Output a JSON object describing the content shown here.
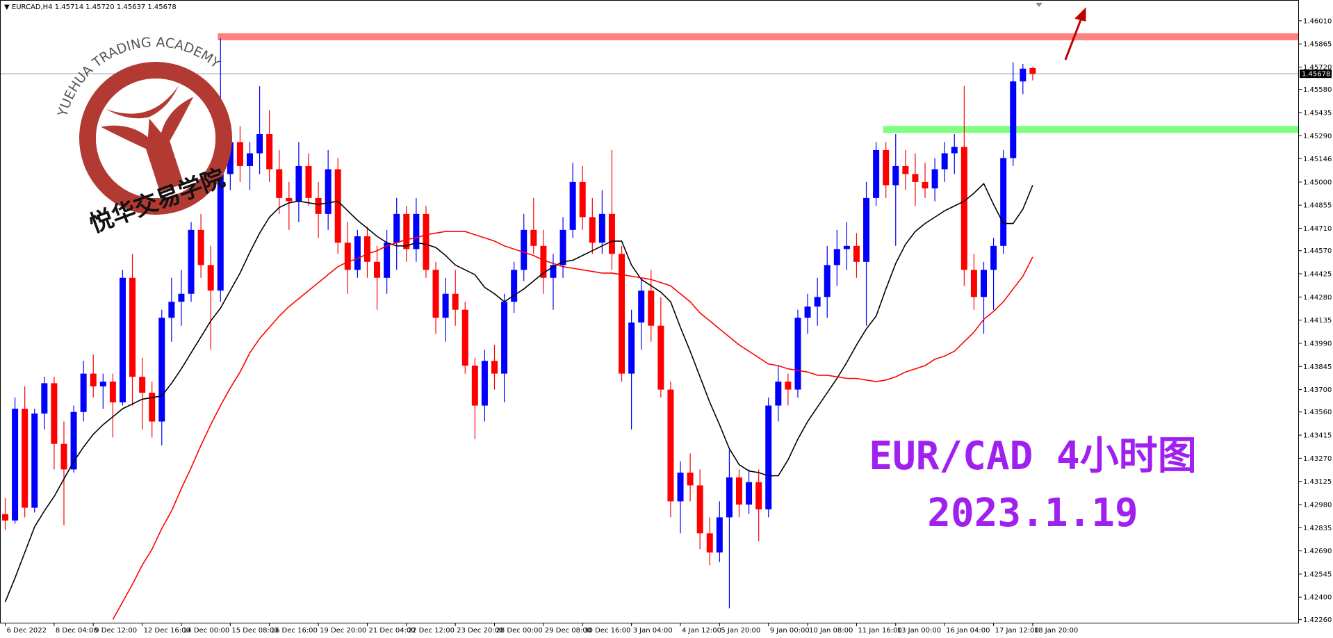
{
  "chart_data": {
    "type": "candlestick",
    "header": {
      "symbol": "EURCAD,H4",
      "prices": [
        "1.45714",
        "1.45720",
        "1.45637",
        "1.45678"
      ]
    },
    "categories": [
      "6 Dec 2022",
      null,
      null,
      null,
      null,
      "8 Dec 04:00",
      null,
      null,
      null,
      "9 Dec 12:00",
      null,
      null,
      null,
      null,
      "12 Dec 16:00",
      null,
      null,
      null,
      "14 Dec 00:00",
      null,
      null,
      null,
      null,
      "15 Dec 08:00",
      null,
      null,
      null,
      "16 Dec 16:00",
      null,
      null,
      null,
      null,
      "19 Dec 20:00",
      null,
      null,
      null,
      null,
      "21 Dec 04:00",
      null,
      null,
      null,
      "22 Dec 12:00",
      null,
      null,
      null,
      null,
      "23 Dec 20:00",
      null,
      null,
      null,
      "28 Dec 00:00",
      null,
      null,
      null,
      null,
      "29 Dec 08:00",
      null,
      null,
      null,
      "30 Dec 16:00",
      null,
      null,
      null,
      null,
      "3 Jan 04:00",
      null,
      null,
      null,
      null,
      "4 Jan 12:00",
      null,
      null,
      null,
      "5 Jan 20:00",
      null,
      null,
      null,
      null,
      "9 Jan 00:00",
      null,
      null,
      null,
      "10 Jan 08:00",
      null,
      null,
      null,
      null,
      "11 Jan 16:00",
      null,
      null,
      null,
      "13 Jan 00:00",
      null,
      null,
      null,
      null,
      "16 Jan 04:00",
      null,
      null,
      null,
      null,
      "17 Jan 12:00",
      null,
      null,
      null,
      "18 Jan 20:00"
    ],
    "ohlc": [
      [
        1.4292,
        1.4302,
        1.4282,
        1.4288
      ],
      [
        1.4288,
        1.4365,
        1.4286,
        1.4358
      ],
      [
        1.4358,
        1.4372,
        1.429,
        1.4296
      ],
      [
        1.4296,
        1.4358,
        1.4293,
        1.4355
      ],
      [
        1.4355,
        1.4378,
        1.4345,
        1.4374
      ],
      [
        1.4374,
        1.4378,
        1.432,
        1.4336
      ],
      [
        1.4336,
        1.435,
        1.4285,
        1.432
      ],
      [
        1.432,
        1.436,
        1.4318,
        1.4356
      ],
      [
        1.4356,
        1.4388,
        1.435,
        1.438
      ],
      [
        1.438,
        1.4392,
        1.4365,
        1.4372
      ],
      [
        1.4372,
        1.438,
        1.4358,
        1.4375
      ],
      [
        1.4375,
        1.438,
        1.434,
        1.4362
      ],
      [
        1.4362,
        1.4445,
        1.436,
        1.444
      ],
      [
        1.444,
        1.4455,
        1.436,
        1.4378
      ],
      [
        1.4378,
        1.439,
        1.4345,
        1.4368
      ],
      [
        1.4368,
        1.4375,
        1.434,
        1.435
      ],
      [
        1.435,
        1.442,
        1.4335,
        1.4415
      ],
      [
        1.4415,
        1.444,
        1.44,
        1.4425
      ],
      [
        1.4425,
        1.4445,
        1.441,
        1.443
      ],
      [
        1.443,
        1.4475,
        1.4425,
        1.447
      ],
      [
        1.447,
        1.448,
        1.444,
        1.4448
      ],
      [
        1.4448,
        1.446,
        1.4395,
        1.4432
      ],
      [
        1.4432,
        1.459,
        1.4425,
        1.4505
      ],
      [
        1.4505,
        1.453,
        1.4495,
        1.4525
      ],
      [
        1.4525,
        1.4535,
        1.45,
        1.451
      ],
      [
        1.451,
        1.4525,
        1.4495,
        1.4518
      ],
      [
        1.4518,
        1.456,
        1.4505,
        1.453
      ],
      [
        1.453,
        1.4545,
        1.45,
        1.4508
      ],
      [
        1.4508,
        1.452,
        1.448,
        1.449
      ],
      [
        1.449,
        1.45,
        1.447,
        1.4488
      ],
      [
        1.4488,
        1.4525,
        1.4475,
        1.451
      ],
      [
        1.451,
        1.4518,
        1.4485,
        1.449
      ],
      [
        1.449,
        1.45,
        1.4465,
        1.448
      ],
      [
        1.448,
        1.452,
        1.447,
        1.4508
      ],
      [
        1.4508,
        1.4515,
        1.4455,
        1.4462
      ],
      [
        1.4462,
        1.4475,
        1.443,
        1.4445
      ],
      [
        1.4445,
        1.447,
        1.444,
        1.4466
      ],
      [
        1.4466,
        1.4472,
        1.444,
        1.445
      ],
      [
        1.445,
        1.446,
        1.442,
        1.444
      ],
      [
        1.444,
        1.447,
        1.443,
        1.4462
      ],
      [
        1.4462,
        1.449,
        1.4445,
        1.448
      ],
      [
        1.448,
        1.4485,
        1.445,
        1.4458
      ],
      [
        1.4458,
        1.449,
        1.445,
        1.448
      ],
      [
        1.448,
        1.4485,
        1.444,
        1.4445
      ],
      [
        1.4445,
        1.445,
        1.4405,
        1.4415
      ],
      [
        1.4415,
        1.444,
        1.44,
        1.443
      ],
      [
        1.443,
        1.4445,
        1.441,
        1.442
      ],
      [
        1.442,
        1.4425,
        1.438,
        1.4385
      ],
      [
        1.4385,
        1.439,
        1.4339,
        1.436
      ],
      [
        1.436,
        1.4395,
        1.435,
        1.4388
      ],
      [
        1.4388,
        1.4398,
        1.437,
        1.438
      ],
      [
        1.438,
        1.443,
        1.4362,
        1.4425
      ],
      [
        1.4425,
        1.445,
        1.4418,
        1.4445
      ],
      [
        1.4445,
        1.448,
        1.4438,
        1.447
      ],
      [
        1.447,
        1.449,
        1.4455,
        1.446
      ],
      [
        1.446,
        1.447,
        1.443,
        1.444
      ],
      [
        1.444,
        1.4455,
        1.442,
        1.4448
      ],
      [
        1.4448,
        1.4478,
        1.444,
        1.447
      ],
      [
        1.447,
        1.4512,
        1.4465,
        1.45
      ],
      [
        1.45,
        1.451,
        1.447,
        1.4478
      ],
      [
        1.4478,
        1.449,
        1.4455,
        1.4462
      ],
      [
        1.4462,
        1.4495,
        1.4455,
        1.448
      ],
      [
        1.448,
        1.452,
        1.4445,
        1.4455
      ],
      [
        1.4455,
        1.446,
        1.4375,
        1.438
      ],
      [
        1.438,
        1.442,
        1.4345,
        1.4412
      ],
      [
        1.4412,
        1.444,
        1.4395,
        1.4432
      ],
      [
        1.4432,
        1.4445,
        1.44,
        1.441
      ],
      [
        1.441,
        1.4428,
        1.4365,
        1.437
      ],
      [
        1.437,
        1.4375,
        1.429,
        1.43
      ],
      [
        1.43,
        1.4325,
        1.428,
        1.4318
      ],
      [
        1.4318,
        1.433,
        1.43,
        1.431
      ],
      [
        1.431,
        1.432,
        1.427,
        1.428
      ],
      [
        1.428,
        1.429,
        1.426,
        1.4268
      ],
      [
        1.4268,
        1.43,
        1.4262,
        1.429
      ],
      [
        1.429,
        1.4332,
        1.4233,
        1.4315
      ],
      [
        1.4315,
        1.432,
        1.429,
        1.4298
      ],
      [
        1.4298,
        1.432,
        1.4292,
        1.4312
      ],
      [
        1.4312,
        1.432,
        1.4275,
        1.4295
      ],
      [
        1.4295,
        1.4365,
        1.429,
        1.436
      ],
      [
        1.436,
        1.4385,
        1.435,
        1.4375
      ],
      [
        1.4375,
        1.438,
        1.436,
        1.437
      ],
      [
        1.437,
        1.442,
        1.4365,
        1.4415
      ],
      [
        1.4415,
        1.443,
        1.4405,
        1.4422
      ],
      [
        1.4422,
        1.444,
        1.441,
        1.4428
      ],
      [
        1.4428,
        1.446,
        1.4415,
        1.4448
      ],
      [
        1.4448,
        1.447,
        1.4435,
        1.4458
      ],
      [
        1.4458,
        1.4475,
        1.4445,
        1.446
      ],
      [
        1.446,
        1.4468,
        1.444,
        1.445
      ],
      [
        1.445,
        1.45,
        1.441,
        1.449
      ],
      [
        1.449,
        1.4525,
        1.4485,
        1.452
      ],
      [
        1.452,
        1.4525,
        1.449,
        1.4498
      ],
      [
        1.4498,
        1.453,
        1.446,
        1.451
      ],
      [
        1.451,
        1.452,
        1.4495,
        1.4505
      ],
      [
        1.4505,
        1.4518,
        1.4485,
        1.45
      ],
      [
        1.45,
        1.4512,
        1.449,
        1.4496
      ],
      [
        1.4496,
        1.4515,
        1.4488,
        1.4508
      ],
      [
        1.4508,
        1.4525,
        1.45,
        1.4518
      ],
      [
        1.4518,
        1.453,
        1.4505,
        1.4522
      ],
      [
        1.4522,
        1.456,
        1.4435,
        1.4445
      ],
      [
        1.4445,
        1.4455,
        1.442,
        1.4428
      ],
      [
        1.4428,
        1.445,
        1.4405,
        1.4445
      ],
      [
        1.4445,
        1.4465,
        1.442,
        1.446
      ],
      [
        1.446,
        1.452,
        1.4455,
        1.4515
      ],
      [
        1.4515,
        1.4575,
        1.451,
        1.4563
      ],
      [
        1.4563,
        1.4574,
        1.4555,
        1.4571
      ],
      [
        1.45714,
        1.4572,
        1.45637,
        1.45678
      ]
    ],
    "up_color": "#0000ff",
    "down_color": "#ff0000",
    "series": [
      {
        "color": "#000000",
        "values": [
          1.4237,
          1.4252,
          1.4268,
          1.4284,
          1.4294,
          1.4303,
          1.4314,
          1.4325,
          1.4334,
          1.4342,
          1.4348,
          1.4353,
          1.4358,
          1.4361,
          1.4364,
          1.4365,
          1.4366,
          1.4374,
          1.4383,
          1.4393,
          1.4403,
          1.4413,
          1.4421,
          1.4432,
          1.4443,
          1.4456,
          1.4468,
          1.4478,
          1.4484,
          1.4487,
          1.4488,
          1.4487,
          1.4486,
          1.4487,
          1.4488,
          1.4482,
          1.4476,
          1.4471,
          1.4466,
          1.4462,
          1.446,
          1.446,
          1.4462,
          1.4461,
          1.4459,
          1.4454,
          1.4448,
          1.4445,
          1.4442,
          1.4434,
          1.443,
          1.4425,
          1.4429,
          1.4433,
          1.4438,
          1.4443,
          1.4447,
          1.445,
          1.4451,
          1.4454,
          1.4457,
          1.446,
          1.4463,
          1.4463,
          1.4448,
          1.4439,
          1.4435,
          1.4431,
          1.4425,
          1.4409,
          1.4394,
          1.4378,
          1.4362,
          1.4348,
          1.4333,
          1.4323,
          1.4319,
          1.4318,
          1.4316,
          1.4316,
          1.4326,
          1.4339,
          1.435,
          1.4359,
          1.4368,
          1.4377,
          1.4387,
          1.4398,
          1.4408,
          1.4416,
          1.4433,
          1.4449,
          1.4461,
          1.4469,
          1.4474,
          1.4478,
          1.4482,
          1.4485,
          1.4488,
          1.4493,
          1.4499,
          1.4486,
          1.4474,
          1.4474,
          1.4483,
          1.4498
        ]
      },
      {
        "color": "#ff0000",
        "values": [
          null,
          null,
          null,
          null,
          null,
          null,
          null,
          null,
          null,
          null,
          null,
          1.4226,
          1.4237,
          1.4248,
          1.426,
          1.427,
          1.4283,
          1.4294,
          1.4308,
          1.4321,
          1.4335,
          1.4348,
          1.436,
          1.4371,
          1.4381,
          1.4393,
          1.4402,
          1.4409,
          1.4416,
          1.4422,
          1.4427,
          1.4432,
          1.4437,
          1.4442,
          1.4447,
          1.445,
          1.4452,
          1.4455,
          1.4457,
          1.446,
          1.4462,
          1.4464,
          1.4465,
          1.4467,
          1.4468,
          1.4469,
          1.4469,
          1.4469,
          1.4467,
          1.4465,
          1.4463,
          1.446,
          1.4458,
          1.4456,
          1.4454,
          1.4451,
          1.4449,
          1.4447,
          1.4446,
          1.4445,
          1.4444,
          1.4443,
          1.4443,
          1.4442,
          1.4441,
          1.444,
          1.4439,
          1.4437,
          1.4435,
          1.443,
          1.4425,
          1.4418,
          1.4413,
          1.4408,
          1.4403,
          1.4398,
          1.4394,
          1.439,
          1.4386,
          1.4385,
          1.4383,
          1.4382,
          1.4381,
          1.4379,
          1.4379,
          1.4378,
          1.4377,
          1.4377,
          1.4376,
          1.4375,
          1.4376,
          1.4378,
          1.4381,
          1.4383,
          1.4385,
          1.4389,
          1.4391,
          1.4394,
          1.44,
          1.4406,
          1.4414,
          1.4419,
          1.4425,
          1.4433,
          1.4441,
          1.4453
        ]
      }
    ],
    "levels": [
      {
        "value": 1.4591,
        "color": "#ff8080"
      },
      {
        "value": 1.4533,
        "color": "#80ff80"
      }
    ],
    "current_price": {
      "value": 1.45678,
      "label": "1.45678"
    },
    "ylim": [
      1.4224,
      1.4614
    ],
    "yticks": [
      {
        "value": 1.4601,
        "label": "1.46010"
      },
      1.45865,
      {
        "value": 1.4572,
        "label": "1.45720"
      },
      {
        "value": 1.4558,
        "label": "1.45580"
      },
      1.45435,
      {
        "value": 1.4529,
        "label": "1.45290"
      },
      1.45146,
      {
        "value": 1.45,
        "label": "1.45000"
      },
      1.44855,
      {
        "value": 1.4471,
        "label": "1.44710"
      },
      {
        "value": 1.4457,
        "label": "1.44570"
      },
      1.44425,
      {
        "value": 1.4428,
        "label": "1.44280"
      },
      1.44135,
      {
        "value": 1.4399,
        "label": "1.43990"
      },
      1.43845,
      {
        "value": 1.437,
        "label": "1.43700"
      },
      {
        "value": 1.4356,
        "label": "1.43560"
      },
      1.43415,
      {
        "value": 1.4327,
        "label": "1.43270"
      },
      1.43125,
      {
        "value": 1.4298,
        "label": "1.42980"
      },
      1.42835,
      {
        "value": 1.4269,
        "label": "1.42690"
      },
      1.42545,
      {
        "value": 1.424,
        "label": "1.42400"
      },
      {
        "value": 1.4226,
        "label": "1.42260"
      }
    ],
    "annotations": [
      "EUR/CAD 4小时图",
      "2023.1.19"
    ]
  },
  "logo": {
    "arc_text": "YUEHUA TRADING ACADEMY",
    "name": "悦华交易学院"
  }
}
